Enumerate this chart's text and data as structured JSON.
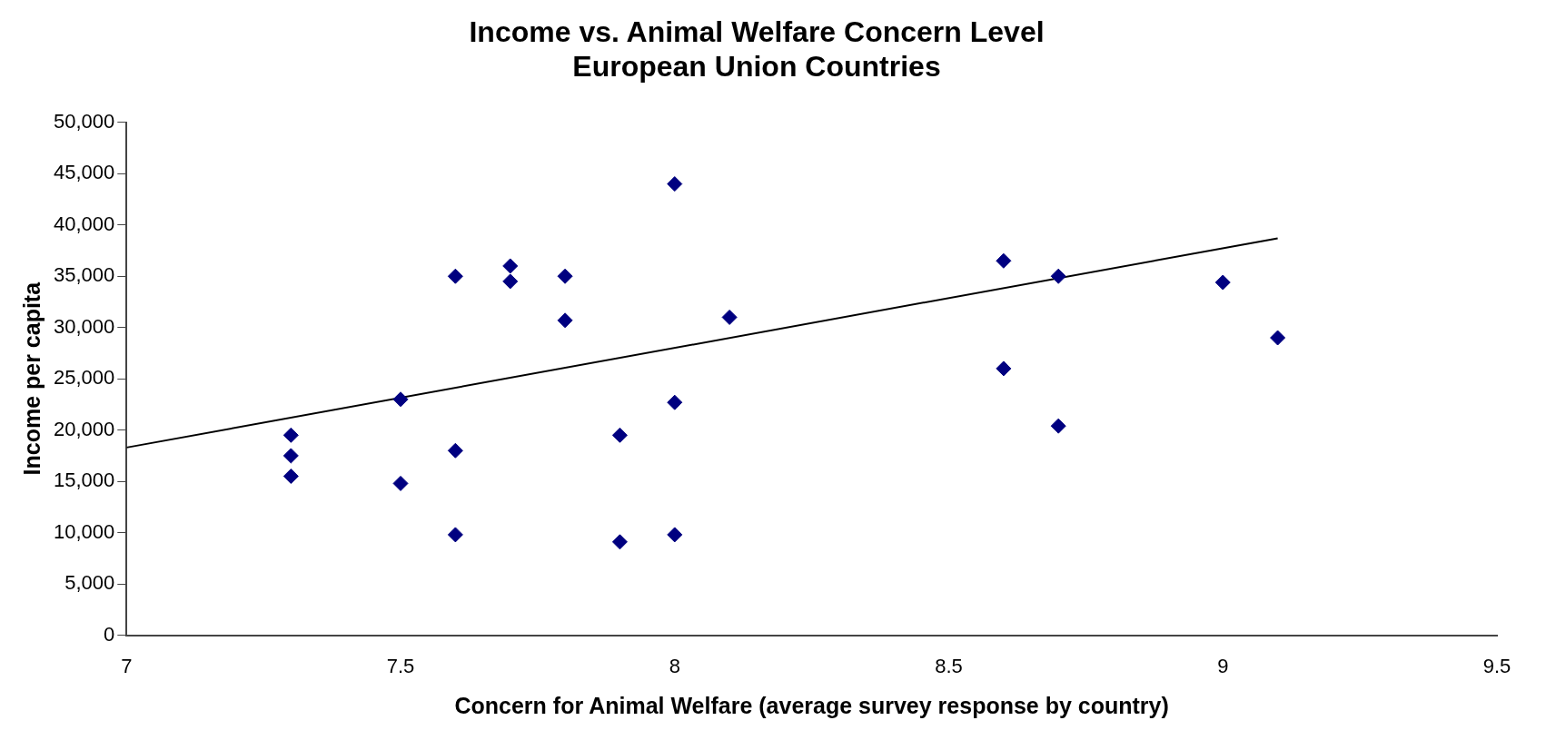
{
  "chart_data": {
    "type": "scatter",
    "title": [
      "Income vs. Animal Welfare Concern Level",
      "European Union Countries"
    ],
    "xlabel": "Concern for Animal Welfare (average survey response by country)",
    "ylabel": "Income per capita",
    "xlim": [
      7,
      9.5
    ],
    "xticks": [
      7,
      7.5,
      8,
      8.5,
      9,
      9.5
    ],
    "ylim": [
      0,
      50000
    ],
    "yticks": [
      {
        "value": 0,
        "label": "0"
      },
      {
        "value": 5000,
        "label": "5,000"
      },
      {
        "value": 10000,
        "label": "10,000"
      },
      {
        "value": 15000,
        "label": "15,000"
      },
      {
        "value": 20000,
        "label": "20,000"
      },
      {
        "value": 25000,
        "label": "25,000"
      },
      {
        "value": 30000,
        "label": "30,000"
      },
      {
        "value": 35000,
        "label": "35,000"
      },
      {
        "value": 40000,
        "label": "40,000"
      },
      {
        "value": 45000,
        "label": "45,000"
      },
      {
        "value": 50000,
        "label": "50,000"
      }
    ],
    "grid": false,
    "legend": false,
    "marker": "diamond",
    "series": [
      {
        "color": "#000080",
        "x": [
          7.3,
          7.3,
          7.3,
          7.5,
          7.5,
          7.6,
          7.6,
          7.6,
          7.7,
          7.7,
          7.8,
          7.8,
          7.9,
          7.9,
          8,
          8,
          8,
          8.1,
          8.6,
          8.6,
          8.7,
          8.7,
          9,
          9.1
        ],
        "values": [
          19500,
          17500,
          15500,
          23000,
          14800,
          35000,
          18000,
          9800,
          36000,
          34500,
          35000,
          30700,
          19500,
          9100,
          44000,
          22700,
          9800,
          31000,
          36500,
          26000,
          35000,
          20400,
          34400,
          29000
        ]
      },
      {
        "type": "line",
        "color": "#000000",
        "marker": "none",
        "x": [
          7,
          9.1
        ],
        "values": [
          18300,
          38700
        ]
      }
    ]
  }
}
